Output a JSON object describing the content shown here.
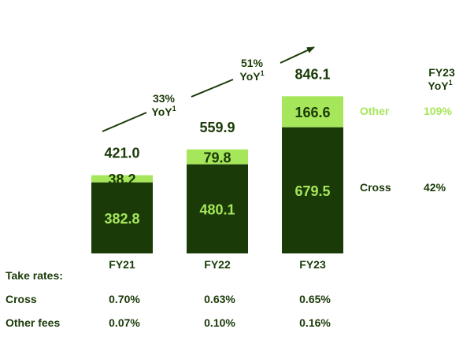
{
  "chart_data": {
    "type": "bar",
    "stacked": true,
    "categories": [
      "FY21",
      "FY22",
      "FY23"
    ],
    "series": [
      {
        "name": "Cross",
        "values": [
          382.8,
          480.1,
          679.5
        ],
        "color": "#1a3a08"
      },
      {
        "name": "Other",
        "values": [
          38.2,
          79.8,
          166.6
        ],
        "color": "#a6e65a"
      }
    ],
    "totals": [
      "421.0",
      "559.9",
      "846.1"
    ],
    "segment_labels": {
      "Cross": [
        "382.8",
        "480.1",
        "679.5"
      ],
      "Other": [
        "38.2",
        "79.8",
        "166.6"
      ]
    },
    "growth": [
      {
        "pct": "33%",
        "label": "YoY",
        "sup": "1"
      },
      {
        "pct": "51%",
        "label": "YoY",
        "sup": "1"
      }
    ],
    "legend": {
      "header_line1": "FY23",
      "header_line2": "YoY",
      "header_sup": "1",
      "items": [
        {
          "name": "Other",
          "yoy": "109%",
          "color": "#a6e65a"
        },
        {
          "name": "Cross",
          "yoy": "42%",
          "color": "#1a3a08"
        }
      ]
    },
    "take_rates": {
      "title": "Take rates:",
      "rows": [
        {
          "label": "Cross",
          "values": [
            "0.70%",
            "0.63%",
            "0.65%"
          ]
        },
        {
          "label": "Other fees",
          "values": [
            "0.07%",
            "0.10%",
            "0.16%"
          ]
        }
      ]
    },
    "colors": {
      "dark": "#1a3a08",
      "light": "#a6e65a",
      "inner_text_light": "#a6e65a"
    }
  }
}
